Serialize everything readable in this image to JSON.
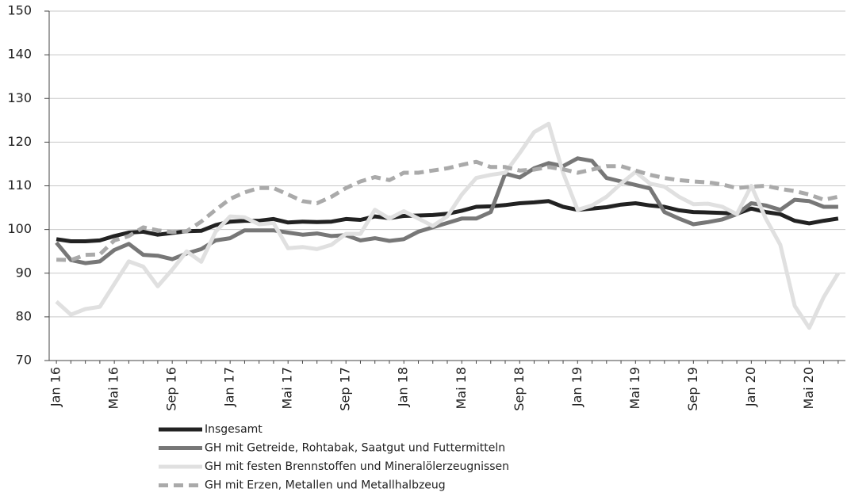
{
  "chart_data": {
    "type": "line",
    "categories": [
      "Jan 16",
      null,
      null,
      null,
      "Mai 16",
      null,
      null,
      null,
      "Sep 16",
      null,
      null,
      null,
      "Jan 17",
      null,
      null,
      null,
      "Mai 17",
      null,
      null,
      null,
      "Sep 17",
      null,
      null,
      null,
      "Jan 18",
      null,
      null,
      null,
      "Mai 18",
      null,
      null,
      null,
      "Sep 18",
      null,
      null,
      null,
      "Jan 19",
      null,
      null,
      null,
      "Mai 19",
      null,
      null,
      null,
      "Sep 19",
      null,
      null,
      null,
      "Jan 20",
      null,
      null,
      null,
      "Mai 20",
      null,
      null
    ],
    "series": [
      {
        "name": "Insgesamt",
        "color": "#222222",
        "line_style": "solid",
        "values": [
          97.8,
          97.3,
          97.3,
          97.5,
          98.5,
          99.3,
          99.5,
          98.8,
          99.2,
          99.6,
          99.7,
          101,
          101.8,
          102,
          102,
          102.4,
          101.6,
          101.8,
          101.7,
          101.8,
          102.4,
          102.2,
          103,
          102.6,
          103.1,
          103.2,
          103.3,
          103.6,
          104.3,
          105.2,
          105.3,
          105.6,
          106,
          106.2,
          106.5,
          105.2,
          104.5,
          104.8,
          105.1,
          105.7,
          106,
          105.5,
          105.2,
          104.4,
          104,
          103.9,
          103.8,
          103.6,
          104.8,
          104,
          103.5,
          102,
          101.4,
          102,
          102.5
        ]
      },
      {
        "name": "GH mit Getreide, Rohtabak, Saatgut und Futtermitteln",
        "color": "#777777",
        "line_style": "solid",
        "values": [
          97,
          93,
          92.3,
          92.7,
          95.3,
          96.7,
          94.2,
          94,
          93.2,
          94.5,
          95.5,
          97.5,
          98,
          99.8,
          99.8,
          99.8,
          99.3,
          98.8,
          99.1,
          98.5,
          98.7,
          97.5,
          98,
          97.4,
          97.8,
          99.5,
          100.5,
          101.5,
          102.5,
          102.5,
          104,
          112.8,
          111.9,
          114,
          115.2,
          114.5,
          116.3,
          115.7,
          111.8,
          111,
          110.2,
          109.4,
          104,
          102.5,
          101.2,
          101.7,
          102.3,
          103.5,
          106,
          105.5,
          104.5,
          106.8,
          106.5,
          105.2,
          105.2
        ]
      },
      {
        "name": "GH mit festen Brennstoffen und Mineralölerzeugnissen",
        "color": "#e0e0e0",
        "line_style": "solid",
        "values": [
          83.5,
          80.5,
          81.8,
          82.3,
          87.5,
          92.7,
          91.5,
          87,
          90.8,
          95,
          92.6,
          99.5,
          103,
          102.8,
          101.2,
          101.5,
          95.7,
          96,
          95.5,
          96.5,
          99,
          99,
          104.5,
          102.5,
          104.2,
          102.5,
          100.8,
          103,
          108,
          111.8,
          112.5,
          113,
          117.5,
          122.3,
          124.2,
          113,
          104.5,
          105.5,
          107.5,
          110.5,
          113.2,
          110.5,
          109.8,
          107.5,
          105.8,
          105.9,
          105.2,
          103.5,
          110,
          102.5,
          96.5,
          82.5,
          77.5,
          84.5,
          90
        ]
      },
      {
        "name": "GH mit Erzen, Metallen und Metallhalbzeug",
        "color": "#aaaaaa",
        "line_style": "dashed",
        "values": [
          93.1,
          93,
          94.2,
          94.3,
          97.5,
          98.5,
          100.5,
          99.8,
          99.4,
          99.6,
          101.8,
          104.5,
          107,
          108.5,
          109.5,
          109.5,
          108,
          106.5,
          106,
          107.5,
          109.5,
          111,
          112,
          111.3,
          113,
          113,
          113.5,
          114,
          114.8,
          115.5,
          114.3,
          114.3,
          113.5,
          113.7,
          114.3,
          113.8,
          113,
          113.7,
          114.5,
          114.5,
          113.5,
          112.5,
          111.8,
          111.3,
          111,
          110.8,
          110.3,
          109.5,
          109.8,
          110,
          109.3,
          108.8,
          108,
          106.8,
          107.5
        ]
      }
    ],
    "ylim": [
      70,
      150
    ],
    "yticks": [
      70,
      80,
      90,
      100,
      110,
      120,
      130,
      140,
      150
    ],
    "grid": true,
    "legend": "bottom"
  }
}
